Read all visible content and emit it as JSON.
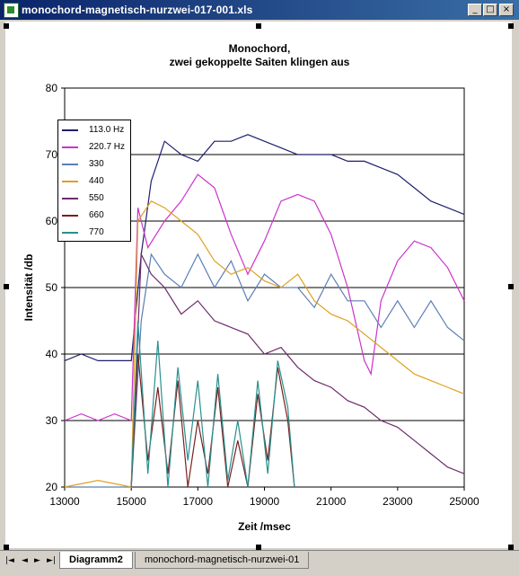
{
  "window": {
    "title": "monochord-magnetisch-nurzwei-017-001.xls",
    "buttons": {
      "minimize": "_",
      "maximize": "□",
      "close": "×"
    }
  },
  "chart_data": {
    "type": "line",
    "title": "Monochord,",
    "subtitle": "zwei gekoppelte Saiten klingen aus",
    "xlabel": "Zeit /msec",
    "ylabel": "Intensität /db",
    "xlim": [
      13000,
      25000
    ],
    "ylim": [
      20,
      80
    ],
    "xticks": [
      "13000",
      "15000",
      "17000",
      "19000",
      "21000",
      "23000",
      "25000"
    ],
    "yticks": [
      "20",
      "30",
      "40",
      "50",
      "60",
      "70",
      "80"
    ],
    "grid": "horizontal",
    "legend_position": "top-left",
    "series": [
      {
        "name": "113.0 Hz",
        "color": "#1f1f6e",
        "x": [
          13000,
          13500,
          14000,
          14500,
          15000,
          15300,
          15600,
          16000,
          16500,
          17000,
          17500,
          18000,
          18500,
          19000,
          19500,
          20000,
          20500,
          21000,
          21500,
          22000,
          22500,
          23000,
          23500,
          24000,
          24500,
          25000
        ],
        "y": [
          39,
          40,
          39,
          39,
          39,
          55,
          66,
          72,
          70,
          69,
          72,
          72,
          73,
          72,
          71,
          70,
          70,
          70,
          69,
          69,
          68,
          67,
          65,
          63,
          62,
          61
        ]
      },
      {
        "name": "220.7 Hz",
        "color": "#cc33cc",
        "x": [
          13000,
          13500,
          14000,
          14500,
          15000,
          15200,
          15500,
          16000,
          16500,
          17000,
          17500,
          18000,
          18500,
          19000,
          19500,
          20000,
          20500,
          21000,
          21500,
          22000,
          22200,
          22500,
          23000,
          23500,
          24000,
          24500,
          25000
        ],
        "y": [
          30,
          31,
          30,
          31,
          30,
          62,
          56,
          60,
          63,
          67,
          65,
          58,
          52,
          57,
          63,
          64,
          63,
          58,
          50,
          39,
          37,
          48,
          54,
          57,
          56,
          53,
          48
        ]
      },
      {
        "name": "330",
        "color": "#5a7fb5",
        "x": [
          13000,
          15000,
          15300,
          15600,
          16000,
          16500,
          17000,
          17500,
          18000,
          18500,
          19000,
          19500,
          20000,
          20500,
          21000,
          21500,
          22000,
          22500,
          23000,
          23500,
          24000,
          24500,
          25000
        ],
        "y": [
          20,
          20,
          45,
          55,
          52,
          50,
          55,
          50,
          54,
          48,
          52,
          50,
          50,
          47,
          52,
          48,
          48,
          44,
          48,
          44,
          48,
          44,
          42
        ]
      },
      {
        "name": "440",
        "color": "#e0a020",
        "x": [
          13000,
          14000,
          15000,
          15200,
          15600,
          16000,
          16500,
          17000,
          17500,
          18000,
          18500,
          19000,
          19500,
          20000,
          20500,
          21000,
          21500,
          22000,
          22500,
          23000,
          23500,
          24000,
          24500,
          25000
        ],
        "y": [
          20,
          21,
          20,
          60,
          63,
          62,
          60,
          58,
          54,
          52,
          53,
          51,
          50,
          52,
          48,
          46,
          45,
          43,
          41,
          39,
          37,
          36,
          35,
          34
        ]
      },
      {
        "name": "550",
        "color": "#6e2b6e",
        "x": [
          15000,
          15300,
          15600,
          16000,
          16500,
          17000,
          17500,
          18000,
          18500,
          19000,
          19500,
          20000,
          20500,
          21000,
          21500,
          22000,
          22500,
          23000,
          23500,
          24000,
          24500,
          25000
        ],
        "y": [
          20,
          55,
          52,
          50,
          46,
          48,
          45,
          44,
          43,
          40,
          41,
          38,
          36,
          35,
          33,
          32,
          30,
          29,
          27,
          25,
          23,
          22
        ]
      },
      {
        "name": "660",
        "color": "#7a1f1f",
        "x": [
          15000,
          15200,
          15500,
          15800,
          16100,
          16400,
          16700,
          17000,
          17300,
          17600,
          17900,
          18200,
          18500,
          18800,
          19100,
          19400,
          19700,
          19900
        ],
        "y": [
          20,
          40,
          24,
          35,
          22,
          36,
          20,
          30,
          22,
          35,
          20,
          27,
          20,
          34,
          24,
          38,
          30,
          20
        ]
      },
      {
        "name": "770",
        "color": "#2a8f8f",
        "x": [
          15000,
          15200,
          15500,
          15800,
          16100,
          16400,
          16700,
          17000,
          17300,
          17600,
          17900,
          18200,
          18500,
          18800,
          19100,
          19400,
          19700,
          19900
        ],
        "y": [
          20,
          45,
          22,
          42,
          20,
          38,
          24,
          36,
          20,
          37,
          21,
          30,
          20,
          36,
          22,
          39,
          32,
          20
        ]
      }
    ]
  },
  "tabs": {
    "nav": [
      "|◄",
      "◄",
      "►",
      "►|"
    ],
    "active": "Diagramm2",
    "inactive": "monochord-magnetisch-nurzwei-01"
  }
}
